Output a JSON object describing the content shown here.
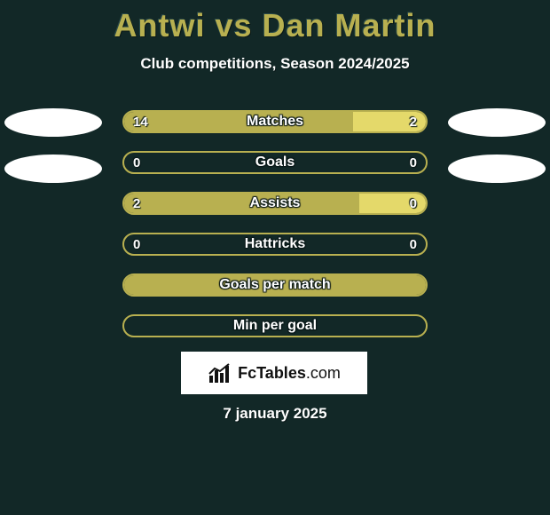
{
  "background_color": "#122827",
  "accent_color": "#b8b050",
  "text_color": "#ffffff",
  "title": "Antwi vs Dan Martin",
  "subtitle": "Club competitions, Season 2024/2025",
  "date": "7 january 2025",
  "players": {
    "left_name": "Antwi",
    "right_name": "Dan Martin"
  },
  "stat_rows": [
    {
      "label": "Matches",
      "left_value": "14",
      "right_value": "2",
      "left_pct": 76,
      "right_pct": 24,
      "left_color": "#b8b050",
      "right_color": "#e4d96a",
      "border_color": "#b8b050"
    },
    {
      "label": "Goals",
      "left_value": "0",
      "right_value": "0",
      "left_pct": 0,
      "right_pct": 0,
      "left_color": "#b8b050",
      "right_color": "#e4d96a",
      "border_color": "#b8b050"
    },
    {
      "label": "Assists",
      "left_value": "2",
      "right_value": "0",
      "left_pct": 78,
      "right_pct": 22,
      "left_color": "#b8b050",
      "right_color": "#e4d96a",
      "border_color": "#b8b050"
    },
    {
      "label": "Hattricks",
      "left_value": "0",
      "right_value": "0",
      "left_pct": 0,
      "right_pct": 0,
      "left_color": "#b8b050",
      "right_color": "#e4d96a",
      "border_color": "#b8b050"
    },
    {
      "label": "Goals per match",
      "left_value": "",
      "right_value": "",
      "left_pct": 100,
      "right_pct": 0,
      "left_color": "#b8b050",
      "right_color": "#b8b050",
      "border_color": "#b8b050"
    },
    {
      "label": "Min per goal",
      "left_value": "",
      "right_value": "",
      "left_pct": 0,
      "right_pct": 0,
      "left_color": "#b8b050",
      "right_color": "#b8b050",
      "border_color": "#b8b050"
    }
  ],
  "brand": {
    "name": "FcTables",
    "suffix": ".com"
  }
}
